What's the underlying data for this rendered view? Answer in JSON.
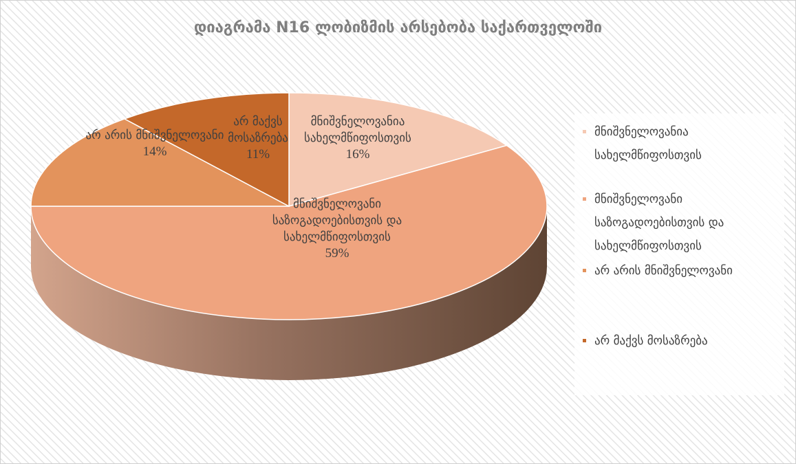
{
  "chart_data": {
    "type": "pie",
    "title": "დიაგრამა N16 ლობიზმის არსებობა საქართველოში",
    "categories": [
      "მნიშვნელოვანია სახელმწიფოსთვის",
      "მნიშვნელოვანი საზოგადოებისთვის და სახელმწიფოსთვის",
      "არ არის მნიშვნელოვანი",
      "არ მაქვს მოსაზრება"
    ],
    "values": [
      16,
      59,
      14,
      11
    ],
    "value_labels": [
      "16%",
      "59%",
      "14%",
      "11%"
    ],
    "colors": [
      "#f5c9b3",
      "#efa47f",
      "#e3935c",
      "#c4682a"
    ],
    "legend": "right"
  }
}
